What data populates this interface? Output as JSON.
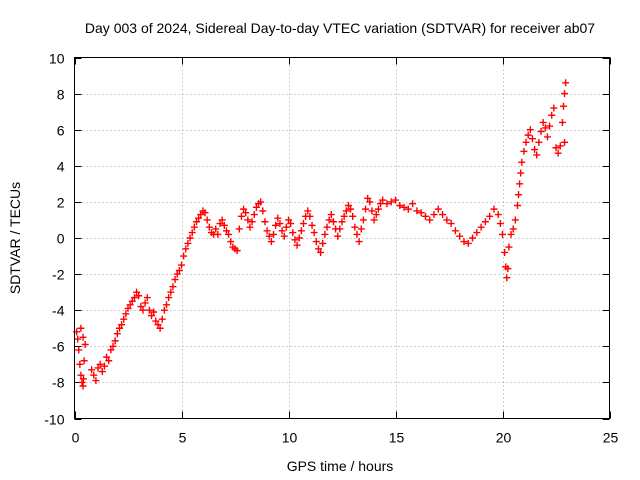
{
  "chart_data": {
    "type": "scatter",
    "title": "Day 003 of 2024, Sidereal Day-to-day VTEC variation (SDTVAR) for receiver ab07",
    "xlabel": "GPS time / hours",
    "ylabel": "SDTVAR / TECUs",
    "xlim": [
      0,
      25
    ],
    "ylim": [
      -10,
      10
    ],
    "xticks": [
      0,
      5,
      10,
      15,
      20,
      25
    ],
    "yticks": [
      -10,
      -8,
      -6,
      -4,
      -2,
      0,
      2,
      4,
      6,
      8,
      10
    ],
    "grid": true,
    "marker": "+",
    "color": "#ff0000",
    "series": [
      {
        "name": "SDTVAR",
        "points": [
          [
            0.1,
            -5.2
          ],
          [
            0.15,
            -5.6
          ],
          [
            0.2,
            -6.2
          ],
          [
            0.25,
            -7.0
          ],
          [
            0.3,
            -7.6
          ],
          [
            0.35,
            -8.0
          ],
          [
            0.4,
            -8.2
          ],
          [
            0.42,
            -7.8
          ],
          [
            0.45,
            -6.8
          ],
          [
            0.5,
            -5.9
          ],
          [
            0.4,
            -5.5
          ],
          [
            0.3,
            -5.0
          ],
          [
            0.8,
            -7.3
          ],
          [
            0.9,
            -7.6
          ],
          [
            1.0,
            -7.9
          ],
          [
            1.1,
            -7.2
          ],
          [
            1.2,
            -7.0
          ],
          [
            1.3,
            -7.4
          ],
          [
            1.4,
            -7.1
          ],
          [
            1.5,
            -6.6
          ],
          [
            1.6,
            -6.8
          ],
          [
            1.7,
            -6.2
          ],
          [
            1.8,
            -6.0
          ],
          [
            1.9,
            -5.7
          ],
          [
            2.0,
            -5.3
          ],
          [
            2.1,
            -5.0
          ],
          [
            2.2,
            -4.8
          ],
          [
            2.3,
            -4.5
          ],
          [
            2.4,
            -4.2
          ],
          [
            2.5,
            -3.9
          ],
          [
            2.6,
            -3.7
          ],
          [
            2.7,
            -3.5
          ],
          [
            2.8,
            -3.3
          ],
          [
            2.9,
            -3.0
          ],
          [
            3.0,
            -3.2
          ],
          [
            3.1,
            -3.8
          ],
          [
            3.2,
            -4.0
          ],
          [
            3.3,
            -3.6
          ],
          [
            3.4,
            -3.3
          ],
          [
            3.5,
            -4.0
          ],
          [
            3.6,
            -4.3
          ],
          [
            3.7,
            -4.1
          ],
          [
            3.8,
            -4.6
          ],
          [
            3.9,
            -4.8
          ],
          [
            4.0,
            -5.0
          ],
          [
            4.1,
            -4.5
          ],
          [
            4.2,
            -4.0
          ],
          [
            4.3,
            -3.7
          ],
          [
            4.4,
            -3.3
          ],
          [
            4.5,
            -3.0
          ],
          [
            4.6,
            -2.7
          ],
          [
            4.7,
            -2.3
          ],
          [
            4.8,
            -2.0
          ],
          [
            4.9,
            -1.8
          ],
          [
            5.0,
            -1.5
          ],
          [
            5.1,
            -1.0
          ],
          [
            5.2,
            -0.6
          ],
          [
            5.3,
            -0.3
          ],
          [
            5.4,
            0.0
          ],
          [
            5.5,
            0.3
          ],
          [
            5.6,
            0.6
          ],
          [
            5.7,
            0.9
          ],
          [
            5.8,
            1.1
          ],
          [
            5.9,
            1.3
          ],
          [
            6.0,
            1.5
          ],
          [
            6.1,
            1.4
          ],
          [
            6.2,
            1.0
          ],
          [
            6.3,
            0.6
          ],
          [
            6.4,
            0.3
          ],
          [
            6.5,
            0.2
          ],
          [
            6.6,
            0.5
          ],
          [
            6.7,
            0.2
          ],
          [
            6.8,
            0.8
          ],
          [
            6.9,
            1.0
          ],
          [
            7.0,
            0.7
          ],
          [
            7.1,
            0.4
          ],
          [
            7.2,
            0.2
          ],
          [
            7.3,
            -0.2
          ],
          [
            7.4,
            -0.5
          ],
          [
            7.5,
            -0.6
          ],
          [
            7.6,
            -0.7
          ],
          [
            7.7,
            0.5
          ],
          [
            7.8,
            1.2
          ],
          [
            7.9,
            1.6
          ],
          [
            8.0,
            1.4
          ],
          [
            8.1,
            1.0
          ],
          [
            8.2,
            0.6
          ],
          [
            8.3,
            0.9
          ],
          [
            8.4,
            1.3
          ],
          [
            8.5,
            1.7
          ],
          [
            8.6,
            1.9
          ],
          [
            8.7,
            2.0
          ],
          [
            8.8,
            1.5
          ],
          [
            8.9,
            0.9
          ],
          [
            9.0,
            0.4
          ],
          [
            9.1,
            0.1
          ],
          [
            9.2,
            -0.2
          ],
          [
            9.3,
            0.2
          ],
          [
            9.4,
            0.7
          ],
          [
            9.5,
            1.1
          ],
          [
            9.6,
            0.8
          ],
          [
            9.7,
            0.4
          ],
          [
            9.8,
            0.1
          ],
          [
            9.9,
            0.6
          ],
          [
            10.0,
            1.0
          ],
          [
            10.1,
            0.8
          ],
          [
            10.2,
            0.3
          ],
          [
            10.3,
            -0.1
          ],
          [
            10.4,
            -0.4
          ],
          [
            10.5,
            0.0
          ],
          [
            10.6,
            0.4
          ],
          [
            10.7,
            0.8
          ],
          [
            10.8,
            1.2
          ],
          [
            10.9,
            1.5
          ],
          [
            11.0,
            1.2
          ],
          [
            11.1,
            0.7
          ],
          [
            11.2,
            0.3
          ],
          [
            11.3,
            -0.2
          ],
          [
            11.4,
            -0.6
          ],
          [
            11.5,
            -0.8
          ],
          [
            11.6,
            -0.3
          ],
          [
            11.7,
            0.2
          ],
          [
            11.8,
            0.6
          ],
          [
            11.9,
            1.0
          ],
          [
            12.0,
            1.3
          ],
          [
            12.1,
            0.9
          ],
          [
            12.2,
            0.5
          ],
          [
            12.3,
            0.1
          ],
          [
            12.4,
            0.5
          ],
          [
            12.5,
            0.9
          ],
          [
            12.6,
            1.2
          ],
          [
            12.7,
            1.5
          ],
          [
            12.8,
            1.8
          ],
          [
            12.9,
            1.6
          ],
          [
            13.0,
            1.2
          ],
          [
            13.1,
            0.6
          ],
          [
            13.2,
            0.2
          ],
          [
            13.3,
            -0.2
          ],
          [
            13.4,
            0.5
          ],
          [
            13.5,
            1.0
          ],
          [
            13.6,
            1.6
          ],
          [
            13.7,
            2.2
          ],
          [
            13.8,
            2.0
          ],
          [
            13.9,
            1.5
          ],
          [
            14.0,
            1.0
          ],
          [
            14.1,
            1.3
          ],
          [
            14.2,
            1.6
          ],
          [
            14.3,
            1.9
          ],
          [
            14.4,
            2.1
          ],
          [
            14.6,
            1.9
          ],
          [
            14.8,
            2.0
          ],
          [
            15.0,
            2.1
          ],
          [
            15.2,
            1.8
          ],
          [
            15.4,
            1.7
          ],
          [
            15.6,
            1.6
          ],
          [
            15.8,
            1.9
          ],
          [
            16.0,
            1.5
          ],
          [
            16.2,
            1.4
          ],
          [
            16.4,
            1.2
          ],
          [
            16.6,
            1.0
          ],
          [
            16.8,
            1.3
          ],
          [
            17.0,
            1.6
          ],
          [
            17.2,
            1.3
          ],
          [
            17.4,
            1.0
          ],
          [
            17.6,
            0.8
          ],
          [
            17.8,
            0.4
          ],
          [
            18.0,
            0.1
          ],
          [
            18.2,
            -0.2
          ],
          [
            18.4,
            -0.3
          ],
          [
            18.6,
            0.0
          ],
          [
            18.8,
            0.3
          ],
          [
            19.0,
            0.6
          ],
          [
            19.2,
            0.9
          ],
          [
            19.4,
            1.2
          ],
          [
            19.6,
            1.6
          ],
          [
            19.8,
            1.3
          ],
          [
            19.9,
            0.8
          ],
          [
            20.0,
            0.2
          ],
          [
            20.1,
            -0.8
          ],
          [
            20.15,
            -1.6
          ],
          [
            20.2,
            -2.2
          ],
          [
            20.25,
            -1.7
          ],
          [
            20.3,
            -0.5
          ],
          [
            20.4,
            0.2
          ],
          [
            20.5,
            0.5
          ],
          [
            20.6,
            1.0
          ],
          [
            20.7,
            1.8
          ],
          [
            20.75,
            2.4
          ],
          [
            20.8,
            3.0
          ],
          [
            20.85,
            3.6
          ],
          [
            20.9,
            4.2
          ],
          [
            21.0,
            4.8
          ],
          [
            21.1,
            5.3
          ],
          [
            21.2,
            5.7
          ],
          [
            21.3,
            6.0
          ],
          [
            21.4,
            5.5
          ],
          [
            21.5,
            4.9
          ],
          [
            21.6,
            4.6
          ],
          [
            21.7,
            5.3
          ],
          [
            21.8,
            5.9
          ],
          [
            21.9,
            6.4
          ],
          [
            22.0,
            6.1
          ],
          [
            22.1,
            5.6
          ],
          [
            22.2,
            6.2
          ],
          [
            22.3,
            6.8
          ],
          [
            22.4,
            7.2
          ],
          [
            22.5,
            5.0
          ],
          [
            22.6,
            4.7
          ],
          [
            22.7,
            5.1
          ],
          [
            22.8,
            6.4
          ],
          [
            22.85,
            7.3
          ],
          [
            22.9,
            8.0
          ],
          [
            22.95,
            8.6
          ],
          [
            22.9,
            5.3
          ]
        ]
      }
    ]
  }
}
